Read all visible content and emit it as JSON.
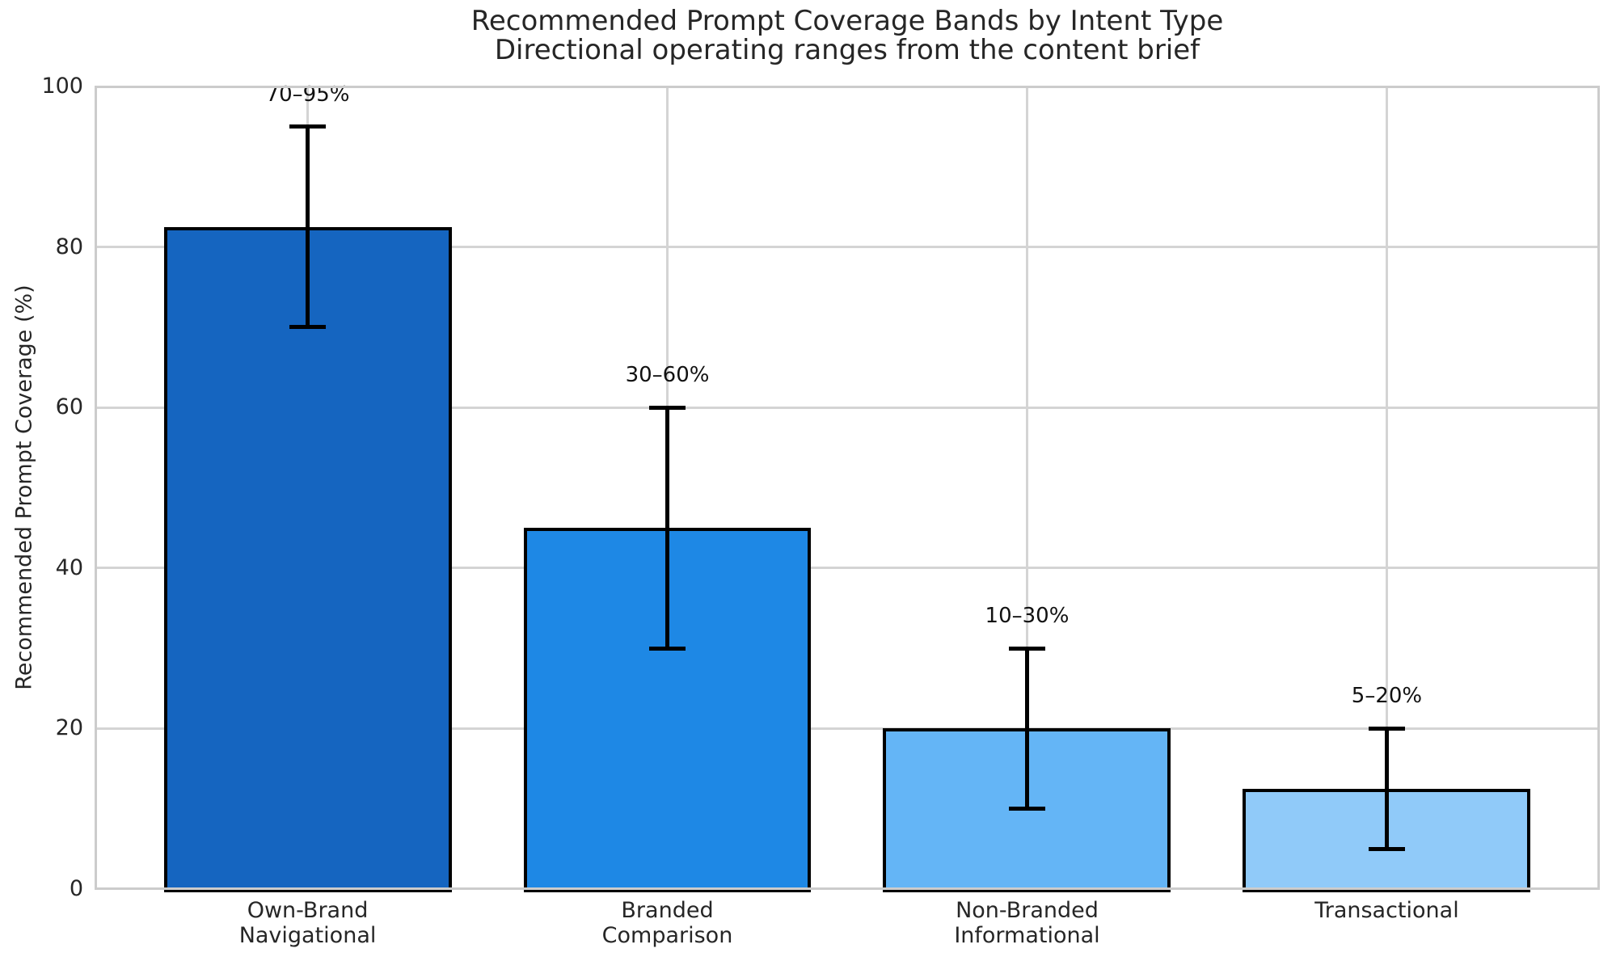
{
  "figure": {
    "title": "Recommended Prompt Coverage Bands by Intent Type",
    "subtitle": "Directional operating ranges from the content brief"
  },
  "chart_data": {
    "type": "bar",
    "title": "Recommended Prompt Coverage Bands by Intent Type",
    "subtitle": "Directional operating ranges from the content brief",
    "categories": [
      "Own-Brand\nNavigational",
      "Branded\nComparison",
      "Non-Branded\nInformational",
      "Transactional"
    ],
    "values": [
      82.5,
      45,
      20,
      12.5
    ],
    "band_low": [
      70,
      30,
      10,
      5
    ],
    "band_high": [
      95,
      60,
      30,
      20
    ],
    "bar_labels": [
      "70–95%",
      "30–60%",
      "10–30%",
      "5–20%"
    ],
    "bar_colors": [
      "#1565c0",
      "#1e88e5",
      "#64b5f6",
      "#90caf9"
    ],
    "bar_edge_color": "#000000",
    "error_bar_color": "#000000",
    "xlabel": "",
    "ylabel": "Recommended Prompt Coverage (%)",
    "ylim": [
      0,
      100
    ],
    "yticks": [
      0,
      20,
      40,
      60,
      80,
      100
    ],
    "grid": true,
    "grid_color": "#d4d4d4",
    "background": "#ffffff",
    "legend": "none"
  }
}
